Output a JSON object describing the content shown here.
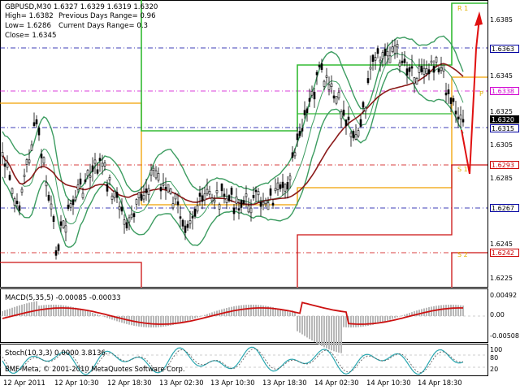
{
  "header": {
    "symbol_line": "GBPUSD,M30  1.6327 1.6329 1.6319 1.6320",
    "high": "High= 1.6382",
    "low": "Low= 1.6286",
    "close": "Close= 1.6345",
    "prev_range": "Previous Days Range= 0.96",
    "curr_range": "Current Days Range= 0.3"
  },
  "macd_label": "MACD(5,35,5) -0.00085 -0.00033",
  "stoch_label": "Stoch(10,3,3) 0.0000 3.8136",
  "copyright": "BMF-Meta, © 2001-2010 MetaQuotes Software Corp.",
  "price_axis": [
    "1.6385",
    "1.6345",
    "1.6325",
    "1.6305",
    "1.6285",
    "1.6245",
    "1.6225"
  ],
  "price_tags": [
    {
      "text": "1.6363",
      "bg": "#ffffff",
      "fg": "#000000",
      "border": "#0000a0"
    },
    {
      "text": "1.6338",
      "bg": "#ffffff",
      "fg": "#d000d0",
      "border": "#d000d0"
    },
    {
      "text": "1.6320",
      "bg": "#000000",
      "fg": "#ffffff",
      "border": "#000000"
    },
    {
      "text": "1.6315",
      "bg": "#ffffff",
      "fg": "#000000",
      "border": "#0000a0"
    },
    {
      "text": "1.6293",
      "bg": "#ffffff",
      "fg": "#cc0000",
      "border": "#cc0000"
    },
    {
      "text": "1.6267",
      "bg": "#ffffff",
      "fg": "#000000",
      "border": "#0000a0"
    },
    {
      "text": "1.6242",
      "bg": "#ffffff",
      "fg": "#cc0000",
      "border": "#cc0000"
    }
  ],
  "macd_axis": [
    "0.00492",
    "0.00",
    "-0.00508"
  ],
  "stoch_axis": [
    "100",
    "80",
    "20"
  ],
  "pivot_labels": [
    "R 1",
    "P",
    "S 1",
    "S 2"
  ],
  "time_axis": [
    "12 Apr 2011",
    "12 Apr 10:30",
    "12 Apr 18:30",
    "13 Apr 02:30",
    "13 Apr 10:30",
    "13 Apr 18:30",
    "14 Apr 02:30",
    "14 Apr 10:30",
    "14 Apr 18:30"
  ],
  "colors": {
    "candles": "#000000",
    "bands": "#3c9c60",
    "slow_ma": "#8b1a1a",
    "pivot": "#f0a000",
    "r1": "#33bb33",
    "s_levels": "#cc1111",
    "macd_hist": "#b8b8b8",
    "macd_signal": "#cc1111",
    "stoch_main": "#2aa7b0",
    "stoch_signal": "#555555",
    "arrow": "#e01010"
  }
}
